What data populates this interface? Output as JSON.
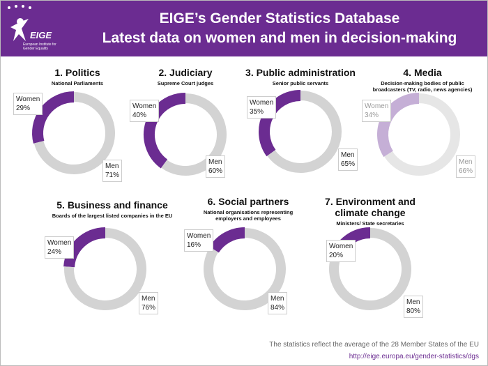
{
  "header": {
    "title": "EIGE’s Gender Statistics Database",
    "subtitle": "Latest data on women and men in decision-making",
    "logo": "EIGE",
    "logo_subtitle": "European Institute for Gender Equality"
  },
  "chart_data": [
    {
      "type": "donut",
      "title": "1. Politics",
      "subtitle": "National Parliaments",
      "categories": [
        "Women",
        "Men"
      ],
      "values": [
        29,
        71
      ],
      "value_labels": [
        "29%",
        "71%"
      ],
      "colors": [
        "#6b2c91",
        "#d3d3d3"
      ]
    },
    {
      "type": "donut",
      "title": "2. Judiciary",
      "subtitle": "Supreme Court judges",
      "categories": [
        "Women",
        "Men"
      ],
      "values": [
        40,
        60
      ],
      "value_labels": [
        "40%",
        "60%"
      ],
      "colors": [
        "#6b2c91",
        "#d3d3d3"
      ]
    },
    {
      "type": "donut",
      "title": "3. Public administration",
      "subtitle": "Senior public servants",
      "categories": [
        "Women",
        "Men"
      ],
      "values": [
        35,
        65
      ],
      "value_labels": [
        "35%",
        "65%"
      ],
      "colors": [
        "#6b2c91",
        "#d3d3d3"
      ]
    },
    {
      "type": "donut",
      "title": "4. Media",
      "subtitle": "Decision-making bodies of public broadcasters (TV, radio, news agencies)",
      "categories": [
        "Women",
        "Men"
      ],
      "values": [
        34,
        66
      ],
      "value_labels": [
        "34%",
        "66%"
      ],
      "colors": [
        "#c5afd6",
        "#e6e6e6"
      ]
    },
    {
      "type": "donut",
      "title": "5. Business and finance",
      "subtitle": "Boards of the largest listed companies in the EU",
      "categories": [
        "Women",
        "Men"
      ],
      "values": [
        24,
        76
      ],
      "value_labels": [
        "24%",
        "76%"
      ],
      "colors": [
        "#6b2c91",
        "#d3d3d3"
      ]
    },
    {
      "type": "donut",
      "title": "6. Social partners",
      "subtitle": "National organisations representing employers and employees",
      "categories": [
        "Women",
        "Men"
      ],
      "values": [
        16,
        84
      ],
      "value_labels": [
        "16%",
        "84%"
      ],
      "colors": [
        "#6b2c91",
        "#d3d3d3"
      ]
    },
    {
      "type": "donut",
      "title": "7. Environment and climate change",
      "subtitle": "Ministers/ State secretaries",
      "categories": [
        "Women",
        "Men"
      ],
      "values": [
        20,
        80
      ],
      "value_labels": [
        "20%",
        "80%"
      ],
      "colors": [
        "#6b2c91",
        "#d3d3d3"
      ]
    }
  ],
  "footer": {
    "note": "The statistics reflect the average of the 28 Member States of the EU",
    "link": "http://eige.europa.eu/gender-statistics/dgs"
  }
}
